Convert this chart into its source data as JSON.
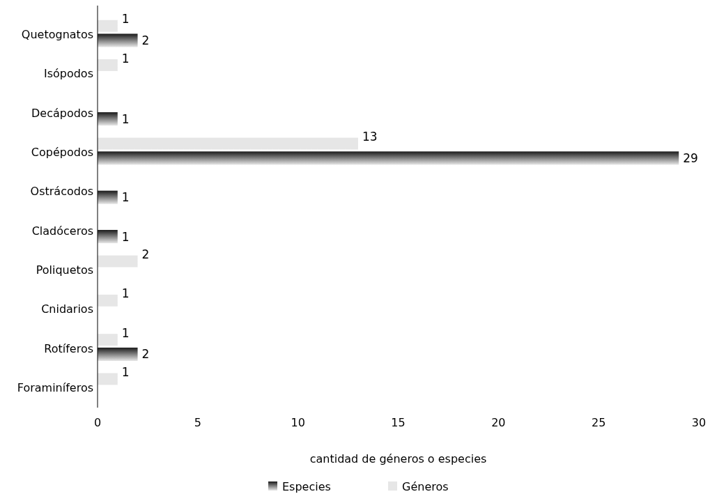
{
  "chart_data": {
    "type": "bar",
    "orientation": "horizontal",
    "xlabel": "cantidad de géneros o especies",
    "categories": [
      "Quetognatos",
      "Isópodos",
      "Decápodos",
      "Copépodos",
      "Ostrácodos",
      "Cladóceros",
      "Poliquetos",
      "Cnidarios",
      "Rotíferos",
      "Foraminíferos"
    ],
    "series": [
      {
        "name": "Especies",
        "color": "#1a1a1a",
        "values": [
          2,
          null,
          1,
          29,
          1,
          1,
          null,
          null,
          2,
          null
        ]
      },
      {
        "name": "Géneros",
        "color": "#e6e6e6",
        "values": [
          1,
          1,
          null,
          13,
          null,
          null,
          2,
          1,
          1,
          1
        ]
      }
    ],
    "xlim": [
      0,
      30
    ],
    "xticks": [
      0,
      5,
      10,
      15,
      20,
      25,
      30
    ],
    "grid": false,
    "legend": "bottom",
    "data_labels": true
  }
}
